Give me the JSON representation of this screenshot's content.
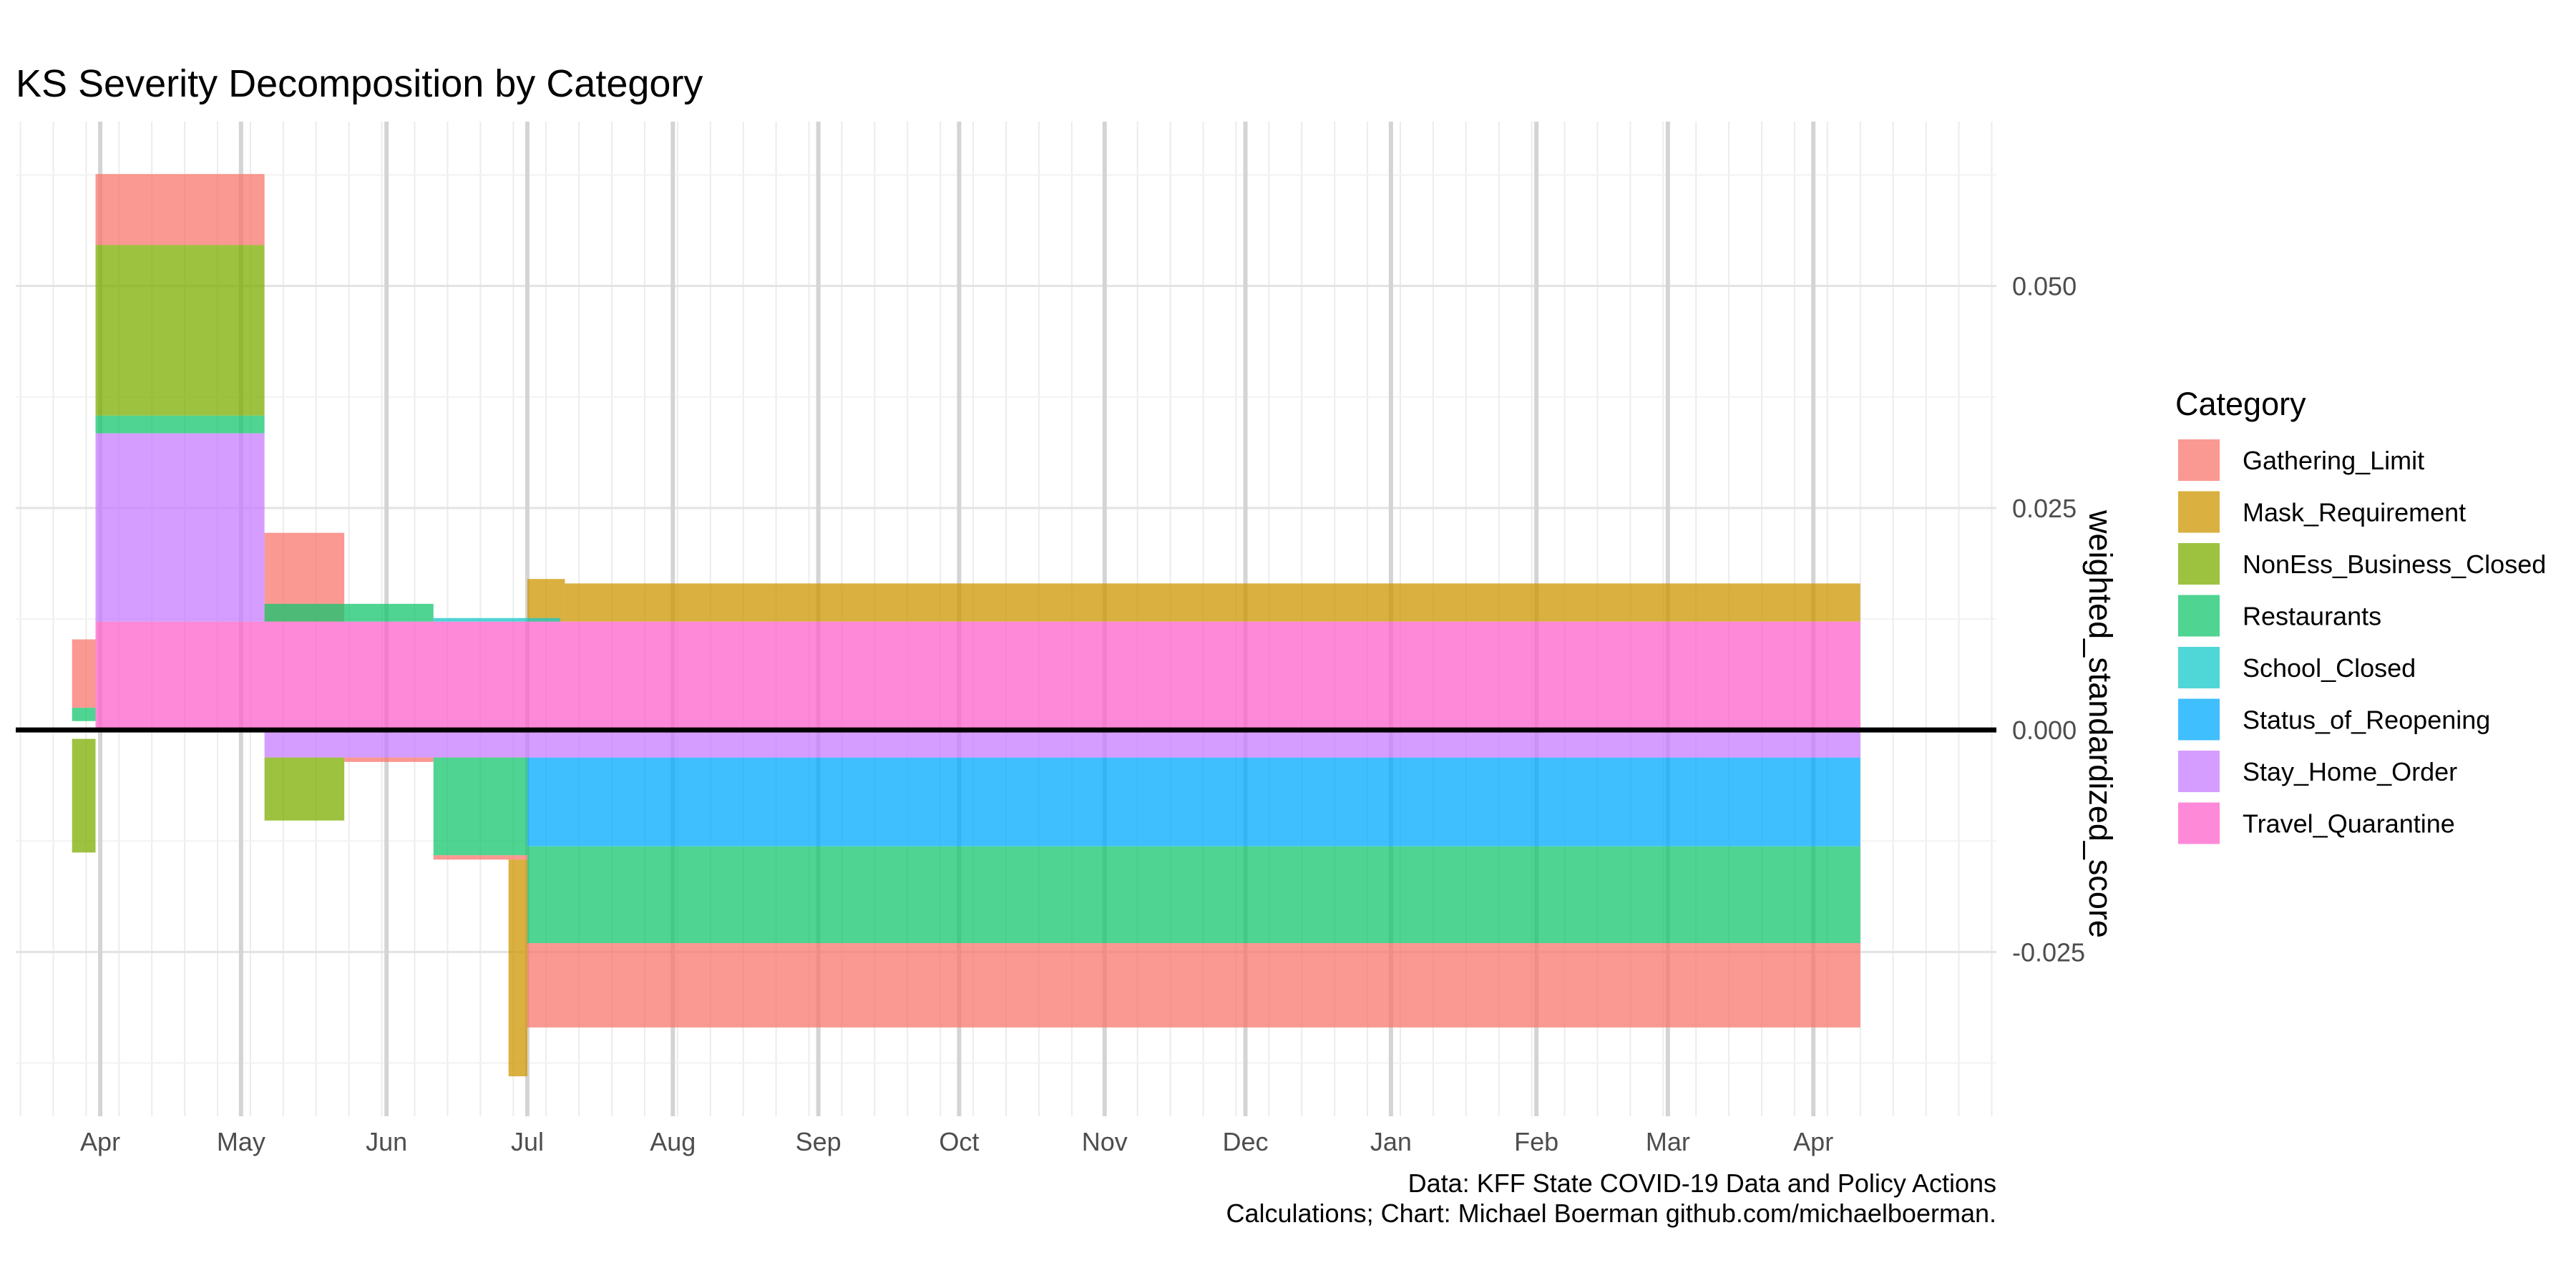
{
  "chart_data": {
    "type": "bar",
    "title": "KS Severity Decomposition by Category",
    "xlabel": "",
    "ylabel": "weighted_standardized_score",
    "caption": [
      "Data: KFF State COVID-19 Data and Policy Actions",
      "Calculations; Chart: Michael Boerman github.com/michaelboerman."
    ],
    "x_domain": [
      "2020-03-14",
      "2021-05-10"
    ],
    "ylim": [
      -0.0435,
      0.0685
    ],
    "y_ticks": [
      {
        "value": -0.025,
        "label": "-0.025"
      },
      {
        "value": 0.0,
        "label": "0.000"
      },
      {
        "value": 0.025,
        "label": "0.025"
      },
      {
        "value": 0.05,
        "label": "0.050"
      }
    ],
    "x_ticks": [
      {
        "date": "2020-04-01",
        "label": "Apr"
      },
      {
        "date": "2020-05-01",
        "label": "May"
      },
      {
        "date": "2020-06-01",
        "label": "Jun"
      },
      {
        "date": "2020-07-01",
        "label": "Jul"
      },
      {
        "date": "2020-08-01",
        "label": "Aug"
      },
      {
        "date": "2020-09-01",
        "label": "Sep"
      },
      {
        "date": "2020-10-01",
        "label": "Oct"
      },
      {
        "date": "2020-11-01",
        "label": "Nov"
      },
      {
        "date": "2020-12-01",
        "label": "Dec"
      },
      {
        "date": "2021-01-01",
        "label": "Jan"
      },
      {
        "date": "2021-02-01",
        "label": "Feb"
      },
      {
        "date": "2021-03-01",
        "label": "Mar"
      },
      {
        "date": "2021-04-01",
        "label": "Apr"
      }
    ],
    "grid": true,
    "zero_line": true,
    "y_axis_position": "right",
    "legend": {
      "title": "Category",
      "position": "right"
    },
    "series": [
      {
        "name": "Gathering_Limit",
        "color": "#F8766D",
        "segments": [
          {
            "start": "2020-03-26",
            "end": "2020-03-31",
            "y0": 0.0025,
            "y1": 0.0102
          },
          {
            "start": "2020-03-31",
            "end": "2020-05-06",
            "y0": 0.0546,
            "y1": 0.0626
          },
          {
            "start": "2020-05-06",
            "end": "2020-05-23",
            "y0": 0.0122,
            "y1": 0.0222
          },
          {
            "start": "2020-05-23",
            "end": "2020-06-11",
            "y0": -0.0036,
            "y1": -0.0031
          },
          {
            "start": "2020-06-11",
            "end": "2020-07-01",
            "y0": -0.0146,
            "y1": -0.0141
          },
          {
            "start": "2020-07-01",
            "end": "2021-04-11",
            "y0": -0.0335,
            "y1": -0.024
          }
        ]
      },
      {
        "name": "Mask_Requirement",
        "color": "#CD9600",
        "segments": [
          {
            "start": "2020-06-27",
            "end": "2020-07-01",
            "y0": -0.039,
            "y1": -0.0146
          },
          {
            "start": "2020-07-01",
            "end": "2020-07-09",
            "y0": 0.0122,
            "y1": 0.017
          },
          {
            "start": "2020-07-09",
            "end": "2021-04-11",
            "y0": 0.0122,
            "y1": 0.0165
          }
        ]
      },
      {
        "name": "NonEss_Business_Closed",
        "color": "#7CAE00",
        "segments": [
          {
            "start": "2020-03-26",
            "end": "2020-03-31",
            "y0": -0.0138,
            "y1": -0.001
          },
          {
            "start": "2020-03-31",
            "end": "2020-05-06",
            "y0": 0.0354,
            "y1": 0.0546
          },
          {
            "start": "2020-05-06",
            "end": "2020-05-23",
            "y0": -0.0102,
            "y1": -0.0031
          }
        ]
      },
      {
        "name": "Restaurants",
        "color": "#0CB702",
        "display_color": "#14C66E",
        "segments": [
          {
            "start": "2020-03-26",
            "end": "2020-03-31",
            "y0": 0.001,
            "y1": 0.0025
          },
          {
            "start": "2020-03-31",
            "end": "2020-05-06",
            "y0": 0.0334,
            "y1": 0.0354
          },
          {
            "start": "2020-05-06",
            "end": "2020-06-11",
            "y0": 0.0122,
            "y1": 0.0142
          },
          {
            "start": "2020-06-11",
            "end": "2020-07-01",
            "y0": -0.0141,
            "y1": -0.0031
          },
          {
            "start": "2020-07-01",
            "end": "2021-04-11",
            "y0": -0.024,
            "y1": -0.0131
          }
        ]
      },
      {
        "name": "School_Closed",
        "color": "#00C19A",
        "display_color": "#14C8C9",
        "segments": [
          {
            "start": "2020-06-11",
            "end": "2020-07-08",
            "y0": 0.0122,
            "y1": 0.0126
          }
        ]
      },
      {
        "name": "Status_of_Reopening",
        "color": "#00A9FF",
        "segments": [
          {
            "start": "2020-07-01",
            "end": "2021-04-11",
            "y0": -0.0131,
            "y1": -0.0031
          }
        ]
      },
      {
        "name": "Stay_Home_Order",
        "color": "#C77CFF",
        "segments": [
          {
            "start": "2020-03-31",
            "end": "2020-05-06",
            "y0": 0.0122,
            "y1": 0.0334
          },
          {
            "start": "2020-05-06",
            "end": "2021-04-11",
            "y0": -0.0031,
            "y1": 0.0
          }
        ]
      },
      {
        "name": "Travel_Quarantine",
        "color": "#FF61CC",
        "segments": [
          {
            "start": "2020-03-31",
            "end": "2021-04-11",
            "y0": 0.0,
            "y1": 0.0122
          }
        ]
      }
    ]
  }
}
